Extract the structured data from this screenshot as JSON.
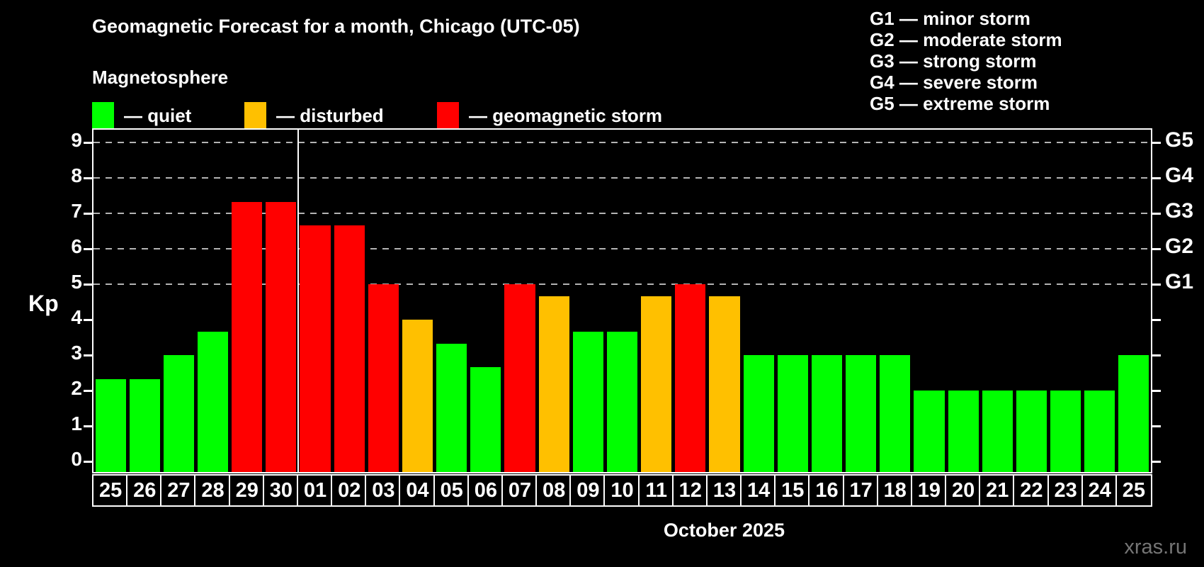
{
  "title": "Geomagnetic Forecast for a month, Chicago (UTC-05)",
  "subtitle": "Magnetosphere",
  "legend": {
    "items": [
      {
        "key": "quiet",
        "label": "— quiet",
        "color": "#00ff00"
      },
      {
        "key": "disturbed",
        "label": "— disturbed",
        "color": "#ffc000"
      },
      {
        "key": "storm",
        "label": "— geomagnetic storm",
        "color": "#ff0000"
      }
    ]
  },
  "g_scale_legend": {
    "lines": [
      "G1 — minor storm",
      "G2 — moderate storm",
      "G3 — strong storm",
      "G4 — severe storm",
      "G5 — extreme storm"
    ]
  },
  "watermark": "xras.ru",
  "chart_data": {
    "type": "bar",
    "title": "Geomagnetic Forecast for a month, Chicago (UTC-05)",
    "ylabel": "Kp",
    "xlabel": "October 2025",
    "ylim": [
      -0.3,
      9.36
    ],
    "y_ticks": [
      0,
      1,
      2,
      3,
      4,
      5,
      6,
      7,
      8,
      9
    ],
    "gridlines_at": [
      5,
      6,
      7,
      8,
      9
    ],
    "grid": "dashed horizontal at storm levels only",
    "legend_position": "top",
    "right_axis_labels": [
      {
        "kp": 5,
        "label": "G1"
      },
      {
        "kp": 6,
        "label": "G2"
      },
      {
        "kp": 7,
        "label": "G3"
      },
      {
        "kp": 8,
        "label": "G4"
      },
      {
        "kp": 9,
        "label": "G5"
      }
    ],
    "month_separator_after_index": 5,
    "categories": [
      "25",
      "26",
      "27",
      "28",
      "29",
      "30",
      "01",
      "02",
      "03",
      "04",
      "05",
      "06",
      "07",
      "08",
      "09",
      "10",
      "11",
      "12",
      "13",
      "14",
      "15",
      "16",
      "17",
      "18",
      "19",
      "20",
      "21",
      "22",
      "23",
      "24",
      "25"
    ],
    "values": [
      2.33,
      2.33,
      3,
      3.67,
      7.33,
      7.33,
      6.67,
      6.67,
      5,
      4,
      3.33,
      2.67,
      5,
      4.67,
      3.67,
      3.67,
      4.67,
      5,
      4.67,
      3,
      3,
      3,
      3,
      3,
      2,
      2,
      2,
      2,
      2,
      2,
      3
    ],
    "levels": [
      "quiet",
      "quiet",
      "quiet",
      "quiet",
      "storm",
      "storm",
      "storm",
      "storm",
      "storm",
      "disturbed",
      "quiet",
      "quiet",
      "storm",
      "disturbed",
      "quiet",
      "quiet",
      "disturbed",
      "storm",
      "disturbed",
      "quiet",
      "quiet",
      "quiet",
      "quiet",
      "quiet",
      "quiet",
      "quiet",
      "quiet",
      "quiet",
      "quiet",
      "quiet",
      "quiet"
    ],
    "level_colors": {
      "quiet": "#00ff00",
      "disturbed": "#ffc000",
      "storm": "#ff0000"
    }
  }
}
